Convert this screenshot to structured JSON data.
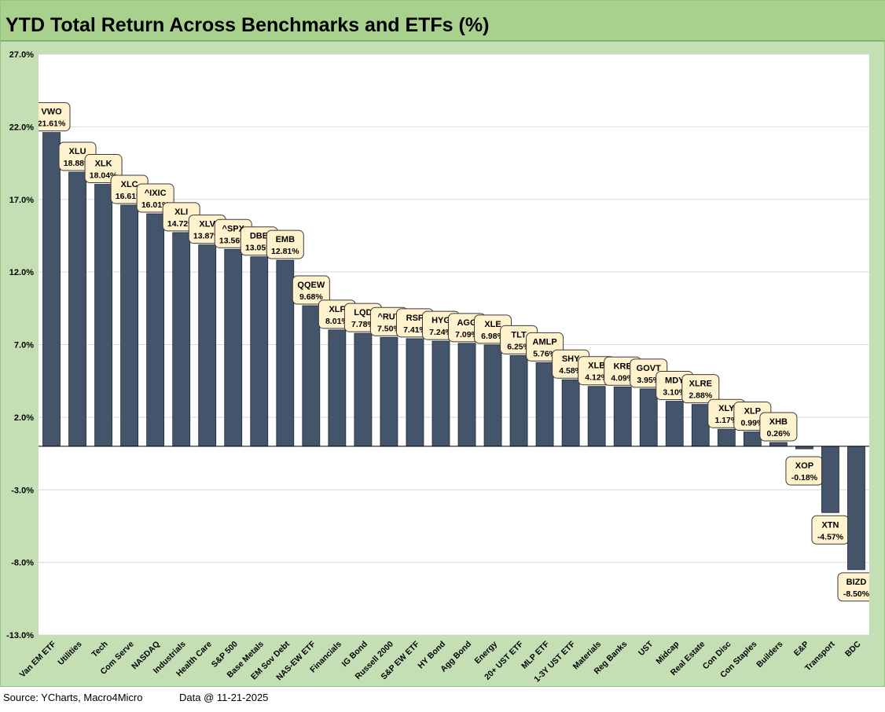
{
  "chart_data": {
    "type": "bar",
    "title": "YTD Total Return Across Benchmarks and ETFs (%)",
    "xlabel": "",
    "ylabel": "",
    "ylim": [
      -13.0,
      27.0
    ],
    "yticks": [
      27.0,
      22.0,
      17.0,
      12.0,
      7.0,
      2.0,
      -3.0,
      -8.0,
      -13.0
    ],
    "ytick_labels": [
      "27.0%",
      "22.0%",
      "17.0%",
      "12.0%",
      "7.0%",
      "2.0%",
      "-3.0%",
      "-8.0%",
      "-13.0%"
    ],
    "grid": true,
    "bar_color": "#44546a",
    "label_bg": "#fff2cc",
    "categories": [
      "Van EM ETF",
      "Utilities",
      "Tech",
      "Com Serve",
      "NASDAQ",
      "Industrials",
      "Health Care",
      "S&P 500",
      "Base Metals",
      "EM Sov Debt",
      "NAS-EW ETF",
      "Financials",
      "IG Bond",
      "Russell 2000",
      "S&P EW ETF",
      "HY Bond",
      "Agg Bond",
      "Energy",
      "20+ UST ETF",
      "MLP ETF",
      "1-3Y UST ETF",
      "Materials",
      "Reg Banks",
      "UST",
      "Midcap",
      "Real Estate",
      "Con Disc",
      "Con Staples",
      "Builders",
      "E&P",
      "Transport",
      "BDC"
    ],
    "tickers": [
      "VWO",
      "XLU",
      "XLK",
      "XLC",
      "^IXIC",
      "XLI",
      "XLV",
      "^SPX",
      "DBB",
      "EMB",
      "QQEW",
      "XLF",
      "LQD",
      "^RUT",
      "RSP",
      "HYG",
      "AGG",
      "XLE",
      "TLT",
      "AMLP",
      "SHY",
      "XLB",
      "KRE",
      "GOVT",
      "MDY",
      "XLRE",
      "XLY",
      "XLP",
      "XHB",
      "XOP",
      "XTN",
      "BIZD"
    ],
    "values": [
      21.61,
      18.88,
      18.04,
      16.61,
      16.01,
      14.72,
      13.87,
      13.56,
      13.05,
      12.81,
      9.68,
      8.01,
      7.78,
      7.5,
      7.41,
      7.24,
      7.09,
      6.98,
      6.25,
      5.76,
      4.58,
      4.12,
      4.09,
      3.95,
      3.1,
      2.88,
      1.17,
      0.99,
      0.26,
      -0.18,
      -4.57,
      -8.5
    ],
    "value_labels": [
      "21.61%",
      "18.88%",
      "18.04%",
      "16.61%",
      "16.01%",
      "14.72%",
      "13.87%",
      "13.56%",
      "13.05%",
      "12.81%",
      "9.68%",
      "8.01%",
      "7.78%",
      "7.50%",
      "7.41%",
      "7.24%",
      "7.09%",
      "6.98%",
      "6.25%",
      "5.76%",
      "4.58%",
      "4.12%",
      "4.09%",
      "3.95%",
      "3.10%",
      "2.88%",
      "1.17%",
      "0.99%",
      "0.26%",
      "-0.18%",
      "-4.57%",
      "-8.50%"
    ]
  },
  "footer": {
    "source": "Source: YCharts, Macro4Micro",
    "data_date": "Data @ 11-21-2025"
  }
}
